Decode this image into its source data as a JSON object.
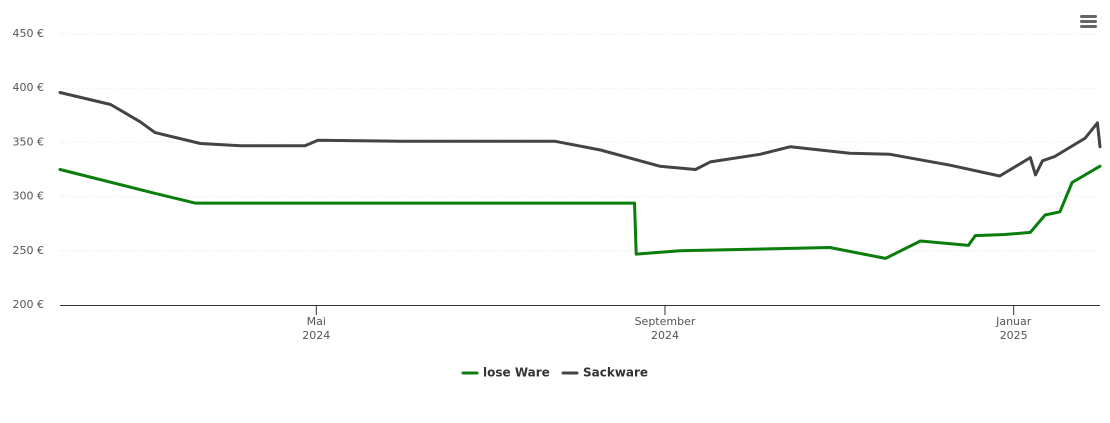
{
  "chart_data": {
    "type": "line",
    "xlim": [
      1.06,
      12.99
    ],
    "xticks": [
      {
        "value": 4,
        "label": "Mai"
      },
      {
        "value": 8,
        "label": "September"
      },
      {
        "value": 12,
        "label": "Januar"
      }
    ],
    "xtick_years": [
      "2024",
      "2024",
      "2025"
    ],
    "ylim": [
      200,
      450
    ],
    "yticks": [
      {
        "value": 200,
        "label": "200 €"
      },
      {
        "value": 250,
        "label": "250 €"
      },
      {
        "value": 300,
        "label": "300 €"
      },
      {
        "value": 350,
        "label": "350 €"
      },
      {
        "value": 400,
        "label": "400 €"
      },
      {
        "value": 450,
        "label": "450 €"
      }
    ],
    "grid": true,
    "legend": "bottom",
    "series": [
      {
        "name": "lose Ware",
        "color": "#0a7d0a",
        "x": [
          1.06,
          2.1,
          2.61,
          7.65,
          7.67,
          8.17,
          9.89,
          10.53,
          10.93,
          11.48,
          11.56,
          11.9,
          12.19,
          12.36,
          12.53,
          12.67,
          12.99
        ],
        "values": [
          325,
          304,
          294,
          294,
          247,
          250,
          253,
          243,
          259,
          255,
          264,
          265,
          267,
          283,
          286,
          313,
          328
        ]
      },
      {
        "name": "Sackware",
        "color": "#434348",
        "x": [
          1.06,
          1.64,
          1.98,
          2.15,
          2.67,
          3.13,
          3.87,
          4.02,
          4.96,
          6.74,
          7.26,
          7.94,
          8.35,
          8.52,
          9.09,
          9.44,
          10.12,
          10.58,
          11.27,
          11.84,
          12.19,
          12.25,
          12.33,
          12.47,
          12.82,
          12.96,
          12.99
        ],
        "values": [
          396,
          385,
          369,
          359,
          349,
          347,
          347,
          352,
          351,
          351,
          343,
          328,
          325,
          332,
          339,
          346,
          340,
          339,
          329,
          319,
          336,
          320,
          333,
          337,
          354,
          368,
          346
        ]
      }
    ]
  }
}
